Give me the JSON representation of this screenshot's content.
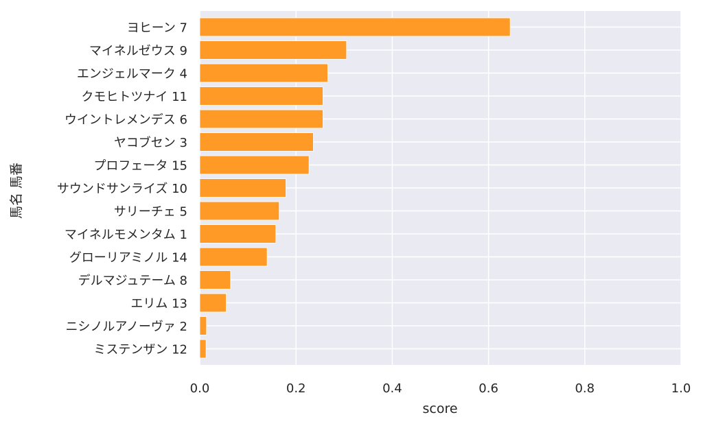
{
  "chart_data": {
    "type": "bar",
    "orientation": "horizontal",
    "categories": [
      "ヨヒーン 7",
      "マイネルゼウス 9",
      "エンジェルマーク 4",
      "クモヒトツナイ 11",
      "ウイントレメンデス 6",
      "ヤコブセン 3",
      "プロフェータ 15",
      "サウンドサンライズ 10",
      "サリーチェ 5",
      "マイネルモメンタム 1",
      "グローリアミノル 14",
      "デルマジュテーム 8",
      "エリム 13",
      "ニシノルアノーヴァ 2",
      "ミステンザン 12"
    ],
    "values": [
      0.645,
      0.305,
      0.266,
      0.256,
      0.256,
      0.236,
      0.227,
      0.179,
      0.165,
      0.158,
      0.14,
      0.064,
      0.055,
      0.014,
      0.013
    ],
    "xlabel": "score",
    "ylabel": "馬名 馬番",
    "xlim": [
      0,
      1.0
    ],
    "xticks": [
      "0.0",
      "0.2",
      "0.4",
      "0.6",
      "0.8",
      "1.0"
    ],
    "grid": true,
    "colors": {
      "bar": "#ff9a26",
      "background": "#eaeaf2",
      "grid": "#ffffff"
    }
  }
}
